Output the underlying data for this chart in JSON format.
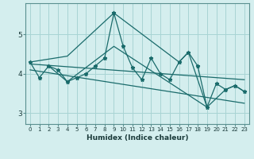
{
  "xlabel": "Humidex (Indice chaleur)",
  "background_color": "#d4eeee",
  "grid_color": "#a8d4d4",
  "line_color": "#1a6b6b",
  "x_data": [
    0,
    1,
    2,
    3,
    4,
    5,
    6,
    7,
    8,
    9,
    10,
    11,
    12,
    13,
    14,
    15,
    16,
    17,
    18,
    19,
    20,
    21,
    22,
    23
  ],
  "main_y": [
    4.3,
    3.9,
    4.2,
    4.1,
    3.8,
    3.9,
    4.0,
    4.2,
    4.4,
    5.55,
    4.7,
    4.15,
    3.85,
    4.4,
    4.0,
    3.85,
    4.3,
    4.55,
    4.2,
    3.15,
    3.75,
    3.6,
    3.7,
    3.55
  ],
  "trend1_x": [
    0,
    23
  ],
  "trend1_y": [
    4.25,
    3.85
  ],
  "trend2_x": [
    0,
    23
  ],
  "trend2_y": [
    4.1,
    3.25
  ],
  "upper_x": [
    0,
    4,
    9,
    16,
    17,
    19
  ],
  "upper_y": [
    4.3,
    4.45,
    5.55,
    4.3,
    4.55,
    3.15
  ],
  "lower_x": [
    2,
    4,
    9,
    19,
    21,
    22,
    23
  ],
  "lower_y": [
    4.2,
    3.8,
    4.7,
    3.15,
    3.6,
    3.7,
    3.55
  ],
  "xlim": [
    -0.5,
    23.5
  ],
  "ylim": [
    2.72,
    5.8
  ],
  "yticks": [
    3,
    4,
    5
  ],
  "xticks": [
    0,
    1,
    2,
    3,
    4,
    5,
    6,
    7,
    8,
    9,
    10,
    11,
    12,
    13,
    14,
    15,
    16,
    17,
    18,
    19,
    20,
    21,
    22,
    23
  ]
}
